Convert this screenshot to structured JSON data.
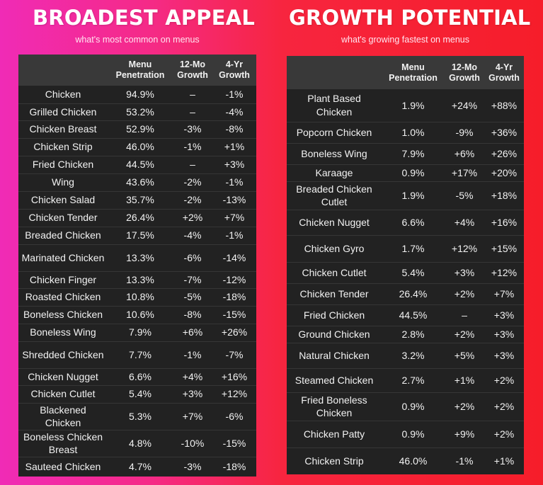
{
  "broadest": {
    "title": "BROADEST APPEAL",
    "subtitle": "what's most common on menus",
    "headers": [
      [
        ""
      ],
      [
        "Menu",
        "Penetration"
      ],
      [
        "12-Mo",
        "Growth"
      ],
      [
        "4-Yr",
        "Growth"
      ]
    ],
    "rows": [
      {
        "name": "Chicken",
        "pen": "94.9%",
        "mo": "–",
        "yr": "-1%"
      },
      {
        "name": "Grilled Chicken",
        "pen": "53.2%",
        "mo": "–",
        "yr": "-4%"
      },
      {
        "name": "Chicken Breast",
        "pen": "52.9%",
        "mo": "-3%",
        "yr": "-8%"
      },
      {
        "name": "Chicken Strip",
        "pen": "46.0%",
        "mo": "-1%",
        "yr": "+1%"
      },
      {
        "name": "Fried Chicken",
        "pen": "44.5%",
        "mo": "–",
        "yr": "+3%"
      },
      {
        "name": "Wing",
        "pen": "43.6%",
        "mo": "-2%",
        "yr": "-1%"
      },
      {
        "name": "Chicken Salad",
        "pen": "35.7%",
        "mo": "-2%",
        "yr": "-13%"
      },
      {
        "name": "Chicken Tender",
        "pen": "26.4%",
        "mo": "+2%",
        "yr": "+7%"
      },
      {
        "name": "Breaded Chicken",
        "pen": "17.5%",
        "mo": "-4%",
        "yr": "-1%"
      },
      {
        "name": "Marinated Chicken",
        "pen": "13.3%",
        "mo": "-6%",
        "yr": "-14%"
      },
      {
        "name": "Chicken Finger",
        "pen": "13.3%",
        "mo": "-7%",
        "yr": "-12%"
      },
      {
        "name": "Roasted Chicken",
        "pen": "10.8%",
        "mo": "-5%",
        "yr": "-18%"
      },
      {
        "name": "Boneless Chicken",
        "pen": "10.6%",
        "mo": "-8%",
        "yr": "-15%"
      },
      {
        "name": "Boneless Wing",
        "pen": "7.9%",
        "mo": "+6%",
        "yr": "+26%"
      },
      {
        "name": "Shredded Chicken",
        "pen": "7.7%",
        "mo": "-1%",
        "yr": "-7%"
      },
      {
        "name": "Chicken Nugget",
        "pen": "6.6%",
        "mo": "+4%",
        "yr": "+16%"
      },
      {
        "name": "Chicken Cutlet",
        "pen": "5.4%",
        "mo": "+3%",
        "yr": "+12%"
      },
      {
        "name": "Blackened Chicken",
        "pen": "5.3%",
        "mo": "+7%",
        "yr": "-6%"
      },
      {
        "name": "Boneless Chicken Breast",
        "pen": "4.8%",
        "mo": "-10%",
        "yr": "-15%"
      },
      {
        "name": "Sauteed Chicken",
        "pen": "4.7%",
        "mo": "-3%",
        "yr": "-18%"
      }
    ]
  },
  "growth": {
    "title": "GROWTH POTENTIAL",
    "subtitle": "what's growing fastest on menus",
    "headers": [
      [
        ""
      ],
      [
        "Menu",
        "Penetration"
      ],
      [
        "12-Mo",
        "Growth"
      ],
      [
        "4-Yr",
        "Growth"
      ]
    ],
    "rows": [
      {
        "name": "Plant Based Chicken",
        "pen": "1.9%",
        "mo": "+24%",
        "yr": "+88%"
      },
      {
        "name": "Popcorn Chicken",
        "pen": "1.0%",
        "mo": "-9%",
        "yr": "+36%"
      },
      {
        "name": "Boneless Wing",
        "pen": "7.9%",
        "mo": "+6%",
        "yr": "+26%"
      },
      {
        "name": "Karaage",
        "pen": "0.9%",
        "mo": "+17%",
        "yr": "+20%"
      },
      {
        "name": "Breaded Chicken Cutlet",
        "pen": "1.9%",
        "mo": "-5%",
        "yr": "+18%"
      },
      {
        "name": "Chicken Nugget",
        "pen": "6.6%",
        "mo": "+4%",
        "yr": "+16%"
      },
      {
        "name": "Chicken Gyro",
        "pen": "1.7%",
        "mo": "+12%",
        "yr": "+15%"
      },
      {
        "name": "Chicken Cutlet",
        "pen": "5.4%",
        "mo": "+3%",
        "yr": "+12%"
      },
      {
        "name": "Chicken Tender",
        "pen": "26.4%",
        "mo": "+2%",
        "yr": "+7%"
      },
      {
        "name": "Fried Chicken",
        "pen": "44.5%",
        "mo": "–",
        "yr": "+3%"
      },
      {
        "name": "Ground Chicken",
        "pen": "2.8%",
        "mo": "+2%",
        "yr": "+3%"
      },
      {
        "name": "Natural Chicken",
        "pen": "3.2%",
        "mo": "+5%",
        "yr": "+3%"
      },
      {
        "name": "Steamed Chicken",
        "pen": "2.7%",
        "mo": "+1%",
        "yr": "+2%"
      },
      {
        "name": "Fried Boneless Chicken",
        "pen": "0.9%",
        "mo": "+2%",
        "yr": "+2%"
      },
      {
        "name": "Chicken Patty",
        "pen": "0.9%",
        "mo": "+9%",
        "yr": "+2%"
      },
      {
        "name": "Chicken Strip",
        "pen": "46.0%",
        "mo": "-1%",
        "yr": "+1%"
      }
    ]
  }
}
